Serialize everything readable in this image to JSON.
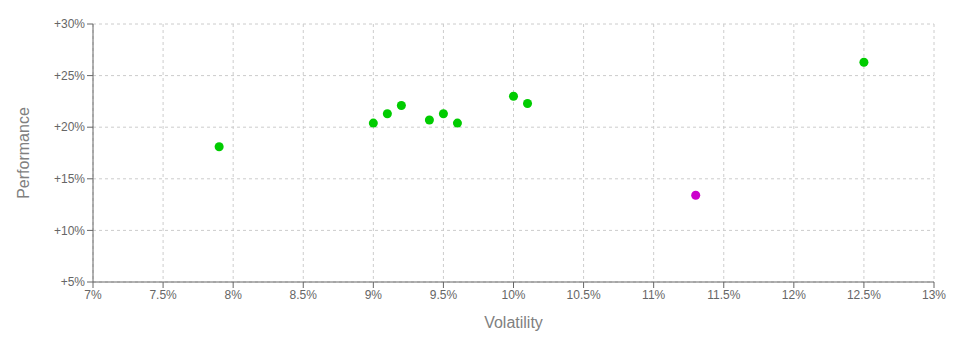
{
  "chart_data": {
    "type": "scatter",
    "xlabel": "Volatility",
    "ylabel": "Performance",
    "xlim": [
      0.07,
      0.13
    ],
    "ylim": [
      0.05,
      0.3
    ],
    "xticks": [
      {
        "value": 0.07,
        "label": "7%"
      },
      {
        "value": 0.075,
        "label": "7.5%"
      },
      {
        "value": 0.08,
        "label": "8%"
      },
      {
        "value": 0.085,
        "label": "8.5%"
      },
      {
        "value": 0.09,
        "label": "9%"
      },
      {
        "value": 0.095,
        "label": "9.5%"
      },
      {
        "value": 0.1,
        "label": "10%"
      },
      {
        "value": 0.105,
        "label": "10.5%"
      },
      {
        "value": 0.11,
        "label": "11%"
      },
      {
        "value": 0.115,
        "label": "11.5%"
      },
      {
        "value": 0.12,
        "label": "12%"
      },
      {
        "value": 0.125,
        "label": "12.5%"
      },
      {
        "value": 0.13,
        "label": "13%"
      }
    ],
    "yticks": [
      {
        "value": 0.05,
        "label": "+5%"
      },
      {
        "value": 0.1,
        "label": "+10%"
      },
      {
        "value": 0.15,
        "label": "+15%"
      },
      {
        "value": 0.2,
        "label": "+20%"
      },
      {
        "value": 0.25,
        "label": "+25%"
      },
      {
        "value": 0.3,
        "label": "+30%"
      }
    ],
    "grid": true,
    "series": [
      {
        "color": "#00cc00",
        "x": [
          0.079,
          0.09,
          0.091,
          0.092,
          0.094,
          0.095,
          0.096,
          0.1,
          0.101,
          0.125
        ],
        "values": [
          0.181,
          0.204,
          0.213,
          0.221,
          0.207,
          0.213,
          0.204,
          0.23,
          0.223,
          0.263
        ]
      },
      {
        "color": "#cc00cc",
        "x": [
          0.113
        ],
        "values": [
          0.134
        ]
      }
    ]
  }
}
